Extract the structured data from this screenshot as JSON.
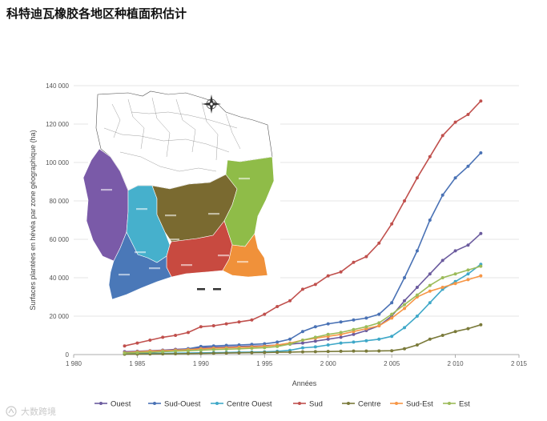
{
  "page": {
    "title": "科特迪瓦橡胶各地区种植面积估计",
    "watermark": "大数跨境"
  },
  "chart_data": {
    "type": "line",
    "title": "",
    "xlabel": "Années",
    "ylabel": "Surfaces plantées en hévéa par zone géographique (ha)",
    "xlim": [
      1980,
      2015
    ],
    "ylim": [
      0,
      140000
    ],
    "x_ticks": [
      "1 980",
      "1 985",
      "1 990",
      "1 995",
      "2 000",
      "2 005",
      "2 010",
      "2 015"
    ],
    "y_ticks": [
      "0",
      "20 000",
      "40 000",
      "60 000",
      "80 000",
      "100 000",
      "120 000",
      "140 000"
    ],
    "grid": "horizontal",
    "legend_position": "bottom",
    "x": [
      1984,
      1985,
      1986,
      1987,
      1988,
      1989,
      1990,
      1991,
      1992,
      1993,
      1994,
      1995,
      1996,
      1997,
      1998,
      1999,
      2000,
      2001,
      2002,
      2003,
      2004,
      2005,
      2006,
      2007,
      2008,
      2009,
      2010,
      2011,
      2012
    ],
    "series": [
      {
        "name": "Ouest",
        "color": "#6b5b9e",
        "values": [
          1500,
          1700,
          2000,
          2300,
          2700,
          3000,
          3500,
          3800,
          4000,
          4200,
          4400,
          4600,
          5000,
          5400,
          6000,
          7000,
          8000,
          9000,
          10500,
          12500,
          15000,
          20000,
          28000,
          35000,
          42000,
          49000,
          54000,
          57000,
          63000
        ]
      },
      {
        "name": "Sud-Ouest",
        "color": "#4a72b5",
        "values": [
          500,
          700,
          1000,
          1500,
          2200,
          3000,
          4200,
          4500,
          4800,
          5000,
          5300,
          5600,
          6500,
          8000,
          12000,
          14500,
          16000,
          17000,
          18000,
          19000,
          21000,
          27000,
          40000,
          54000,
          70000,
          83000,
          92000,
          98000,
          105000
        ]
      },
      {
        "name": "Centre Ouest",
        "color": "#3fa8c8",
        "values": [
          300,
          400,
          500,
          600,
          700,
          800,
          900,
          1000,
          1100,
          1200,
          1300,
          1400,
          1700,
          2200,
          3500,
          4000,
          5000,
          6000,
          6500,
          7200,
          8000,
          9500,
          14000,
          20000,
          27000,
          34000,
          38000,
          42000,
          47000
        ]
      },
      {
        "name": "Sud",
        "color": "#c0504d",
        "values": [
          4500,
          6000,
          7500,
          9000,
          10000,
          11500,
          14500,
          15000,
          16000,
          17000,
          18000,
          21000,
          25000,
          28000,
          34000,
          36500,
          41000,
          43000,
          48000,
          51000,
          58000,
          68000,
          80000,
          92000,
          103000,
          114000,
          121000,
          125000,
          132000
        ]
      },
      {
        "name": "Centre",
        "color": "#7a7a3a",
        "values": [
          200,
          250,
          300,
          350,
          400,
          500,
          600,
          700,
          800,
          900,
          1000,
          1100,
          1200,
          1300,
          1400,
          1500,
          1600,
          1700,
          1800,
          1800,
          1900,
          2000,
          3000,
          5000,
          8000,
          10000,
          12000,
          13500,
          15500
        ]
      },
      {
        "name": "Sud-Est",
        "color": "#f79646",
        "values": [
          1000,
          1400,
          1800,
          2000,
          2300,
          2600,
          3000,
          3300,
          3500,
          3800,
          4000,
          4300,
          5000,
          6000,
          7500,
          8500,
          9500,
          10500,
          12000,
          13500,
          15000,
          19000,
          24000,
          30000,
          33000,
          35000,
          37000,
          39000,
          41000
        ]
      },
      {
        "name": "Est",
        "color": "#9bbb59",
        "values": [
          800,
          1000,
          1200,
          1500,
          1800,
          2000,
          2300,
          2600,
          2800,
          3000,
          3300,
          3600,
          4200,
          5500,
          7500,
          9000,
          10500,
          11500,
          13000,
          14500,
          16500,
          21000,
          26000,
          31000,
          36000,
          40000,
          42000,
          44000,
          46000
        ]
      }
    ]
  },
  "map": {
    "colors": {
      "Ouest": "#7a5aa8",
      "Sud-Ouest": "#4a78b8",
      "Centre Ouest": "#46b0cc",
      "Sud": "#c84a40",
      "Centre": "#7a6a30",
      "Sud-Est": "#f0913a",
      "Est": "#8fbc48"
    },
    "compass_icon": "compass-rose-icon"
  }
}
